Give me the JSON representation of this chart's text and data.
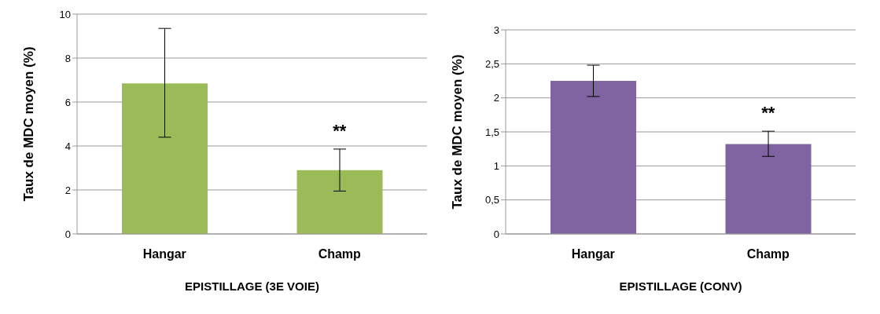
{
  "chart_data": [
    {
      "type": "bar",
      "xlabel": "EPISTILLAGE (3E VOIE)",
      "ylabel": "Taux de MDC moyen (%)",
      "categories": [
        "Hangar",
        "Champ"
      ],
      "series": [
        {
          "color": "#9bbb59",
          "values": [
            6.85,
            2.9
          ],
          "errors": [
            [
              4.4,
              9.35
            ],
            [
              1.95,
              3.86
            ]
          ]
        }
      ],
      "ylim": [
        0,
        10
      ],
      "yticks": [
        0,
        2,
        4,
        6,
        8,
        10
      ],
      "grid": "y",
      "legend": false,
      "annotations": [
        "**"
      ]
    },
    {
      "type": "bar",
      "xlabel": "EPISTILLAGE (CONV)",
      "ylabel": "Taux de MDC moyen (%)",
      "categories": [
        "Hangar",
        "Champ"
      ],
      "series": [
        {
          "color": "#8064a2",
          "values": [
            2.25,
            1.32
          ],
          "errors": [
            [
              2.02,
              2.48
            ],
            [
              1.14,
              1.51
            ]
          ]
        }
      ],
      "ylim": [
        0,
        3
      ],
      "yticks": [
        0,
        {
          "value": 0.5,
          "label": "0,5"
        },
        1,
        {
          "value": 1.5,
          "label": "1,5"
        },
        2,
        {
          "value": 2.5,
          "label": "2,5"
        },
        3
      ],
      "grid": "y",
      "legend": false,
      "annotations": [
        "**"
      ]
    }
  ]
}
